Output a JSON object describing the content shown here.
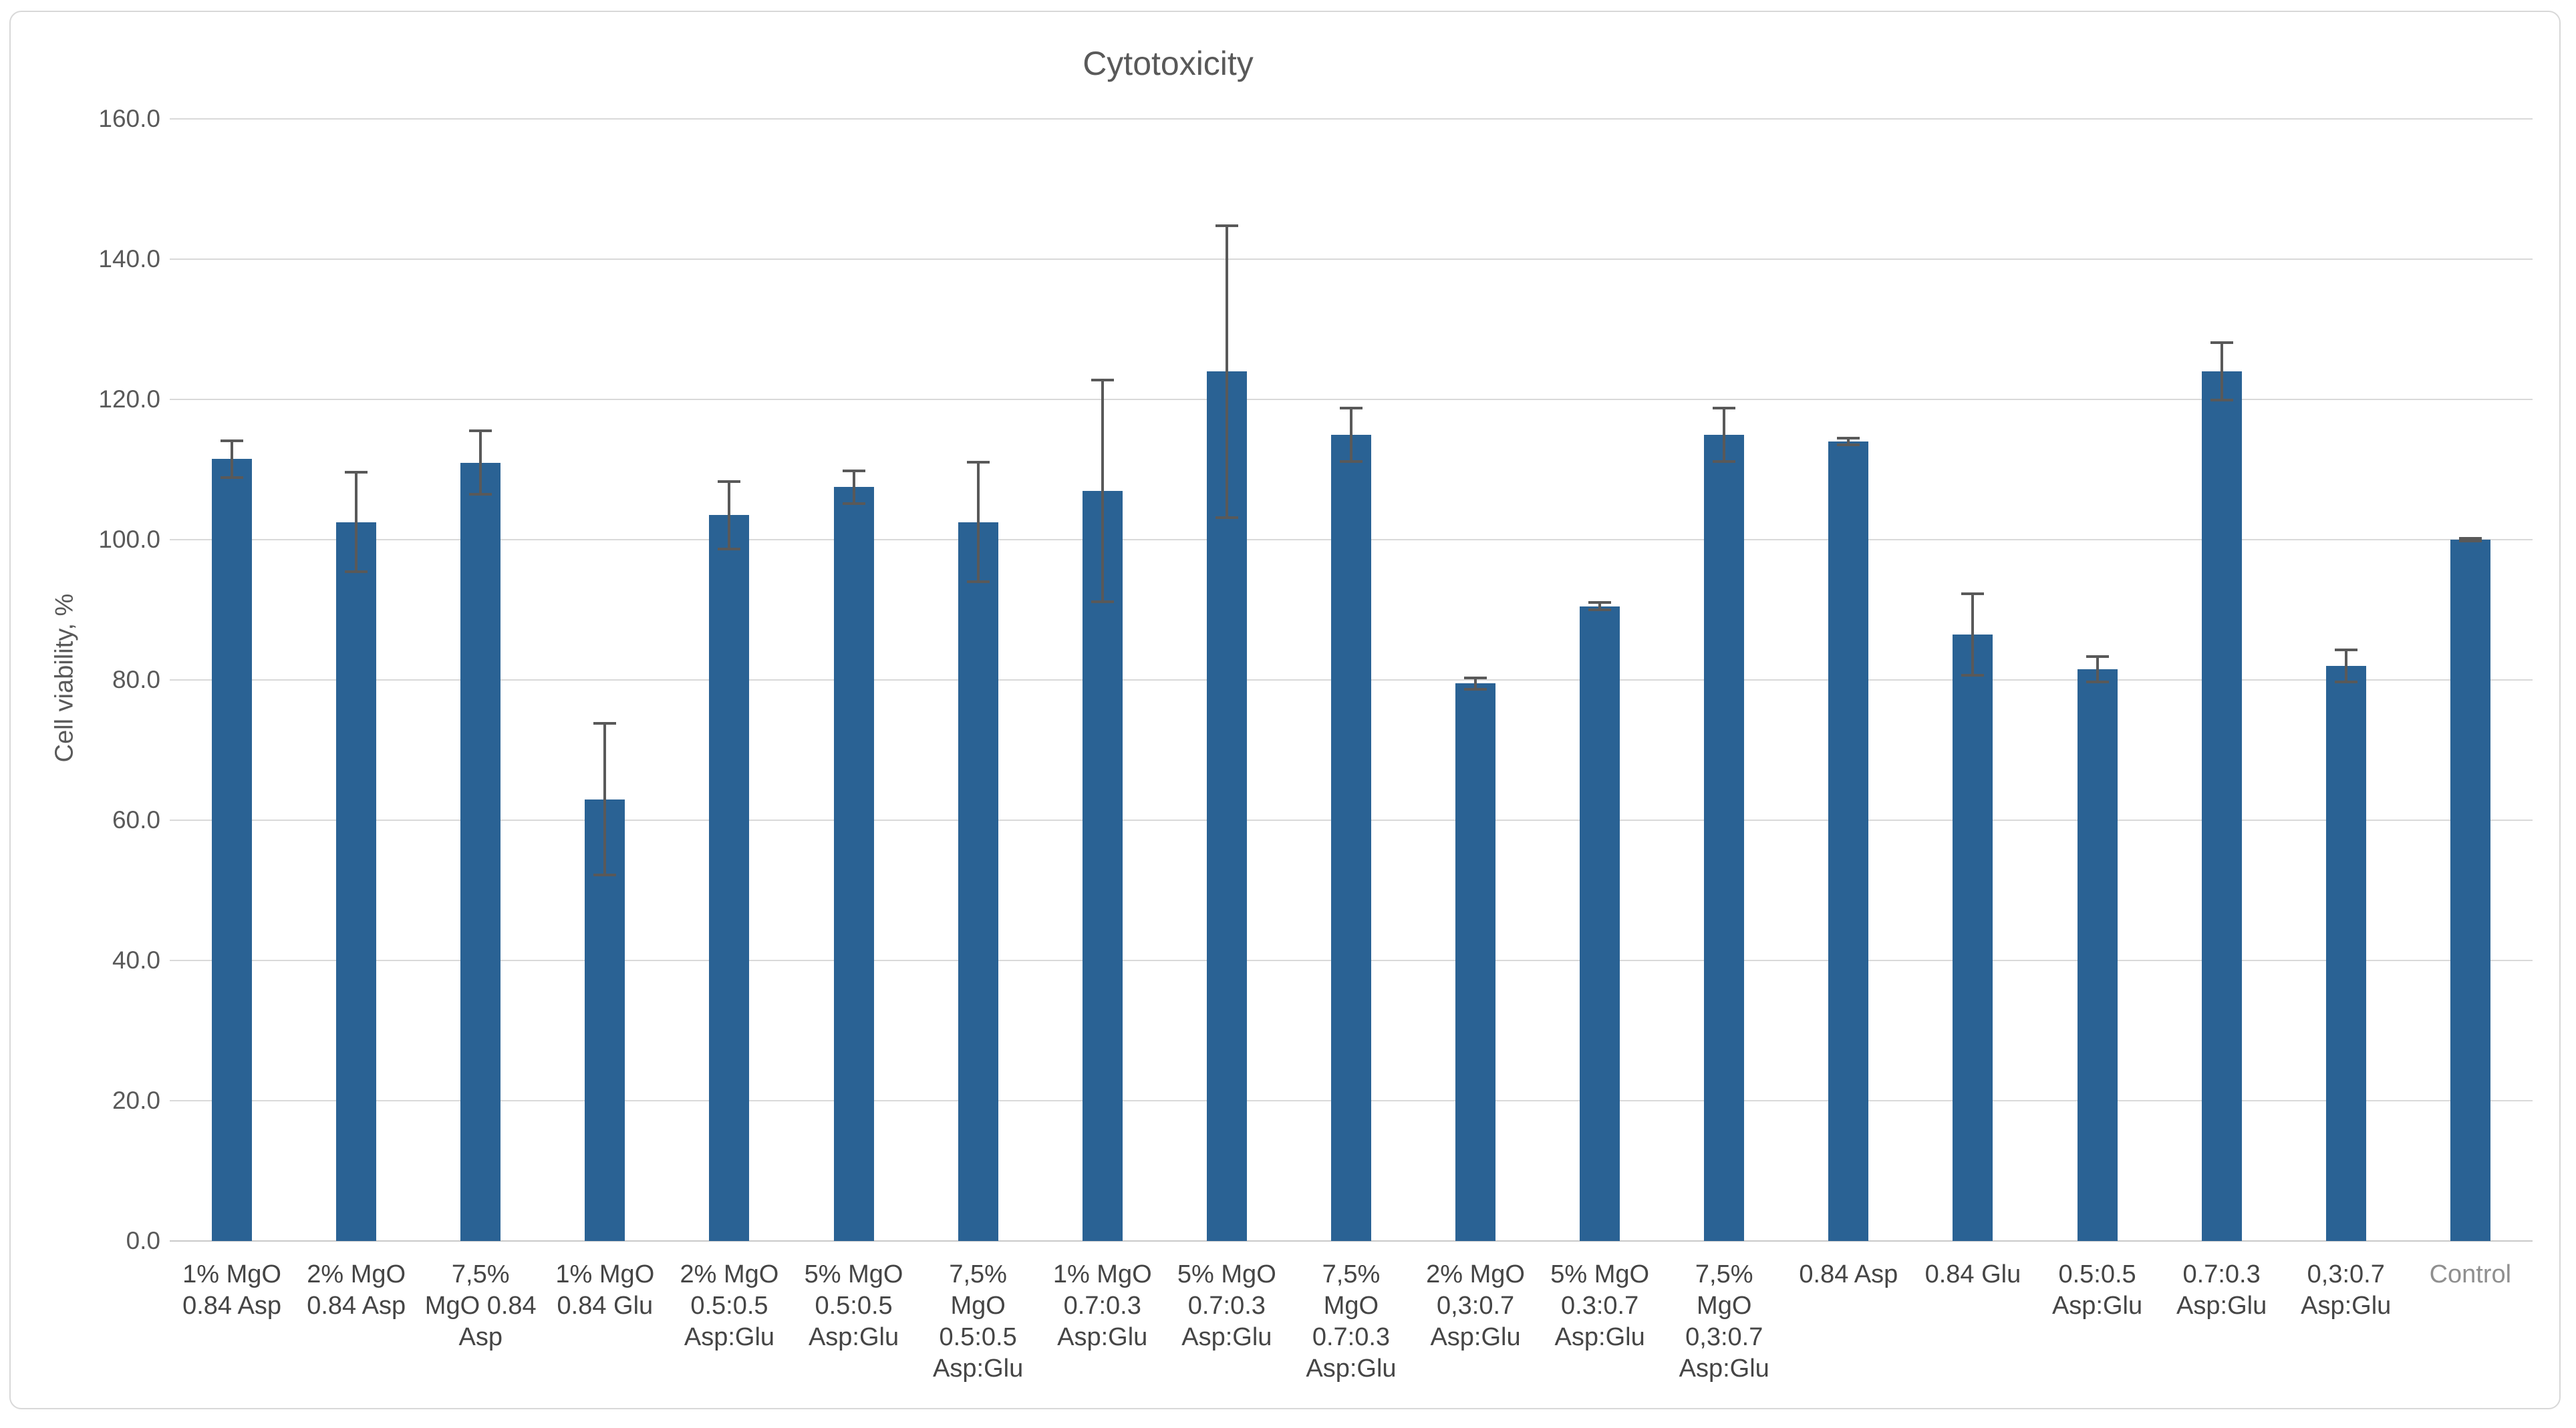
{
  "chart_data": {
    "type": "bar",
    "title": "Cytotoxicity",
    "xlabel": "",
    "ylabel": "Cell viability, %",
    "ylim": [
      0,
      160
    ],
    "ytick_step": 20,
    "grid": "horizontal",
    "legend": "none",
    "categories": [
      "1% MgO 0.84 Asp",
      "2% MgO 0.84 Asp",
      "7,5% MgO 0.84 Asp",
      "1% MgO 0.84 Glu",
      "2% MgO 0.5:0.5 Asp:Glu",
      "5% MgO 0.5:0.5 Asp:Glu",
      "7,5% MgO 0.5:0.5 Asp:Glu",
      "1% MgO 0.7:0.3 Asp:Glu",
      "5% MgO 0.7:0.3 Asp:Glu",
      "7,5% MgO 0.7:0.3 Asp:Glu",
      "2% MgO 0,3:0.7 Asp:Glu",
      "5% MgO 0.3:0.7 Asp:Glu",
      "7,5% MgO 0,3:0.7 Asp:Glu",
      "0.84 Asp",
      "0.84 Glu",
      "0.5:0.5 Asp:Glu",
      "0.7:0.3 Asp:Glu",
      "0,3:0.7 Asp:Glu",
      "Control"
    ],
    "values": [
      111.5,
      102.5,
      111.0,
      63.0,
      103.5,
      107.5,
      102.5,
      107.0,
      124.0,
      115.0,
      79.5,
      90.5,
      115.0,
      114.0,
      86.5,
      81.5,
      124.0,
      82.0,
      100.0
    ],
    "error_bars": [
      2.8,
      7.3,
      4.7,
      11.0,
      5.0,
      2.5,
      8.7,
      16.0,
      21.0,
      4.0,
      1.0,
      0.7,
      4.0,
      0.7,
      6.0,
      2.0,
      4.3,
      2.5,
      0.4
    ]
  },
  "display": {
    "y_tick_labels": [
      "0.0",
      "20.0",
      "40.0",
      "60.0",
      "80.0",
      "100.0",
      "120.0",
      "140.0",
      "160.0"
    ],
    "category_label_lines": [
      "1% MgO\n0.84 Asp",
      "2% MgO\n0.84 Asp",
      "7,5%\nMgO 0.84\nAsp",
      "1% MgO\n0.84 Glu",
      "2% MgO\n0.5:0.5\nAsp:Glu",
      "5% MgO\n0.5:0.5\nAsp:Glu",
      "7,5%\nMgO\n0.5:0.5\nAsp:Glu",
      "1% MgO\n0.7:0.3\nAsp:Glu",
      "5% MgO\n0.7:0.3\nAsp:Glu",
      "7,5%\nMgO\n0.7:0.3\nAsp:Glu",
      "2% MgO\n0,3:0.7\nAsp:Glu",
      "5% MgO\n0.3:0.7\nAsp:Glu",
      "7,5%\nMgO\n0,3:0.7\nAsp:Glu",
      "0.84 Asp",
      "0.84 Glu",
      "0.5:0.5\nAsp:Glu",
      "0.7:0.3\nAsp:Glu",
      "0,3:0.7\nAsp:Glu",
      "Control"
    ],
    "colors": {
      "bar": "#2A6294",
      "error_bar": "#595959",
      "gridline": "#D9D9D9",
      "axis_line": "#C9C9C9",
      "tick_text": "#595959",
      "category_text": "#454545",
      "control_text": "#8F8F8F",
      "title_text": "#595959",
      "frame_border": "#D8D8D8"
    }
  }
}
